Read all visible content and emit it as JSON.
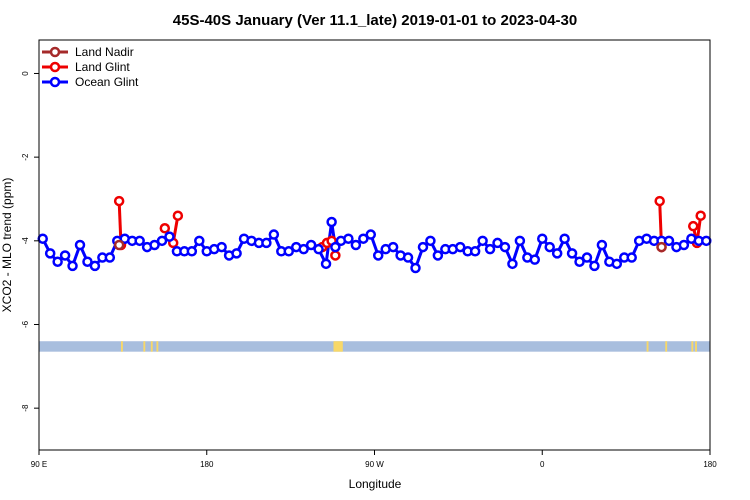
{
  "chart_data": {
    "type": "line",
    "title": "45S-40S January (Ver 11.1_late)   2019-01-01 to 2023-04-30",
    "xlabel": "Longitude",
    "ylabel": "XCO2 - MLO trend (ppm)",
    "xlim": [
      90,
      450
    ],
    "ylim": [
      -9.0,
      0.8
    ],
    "x_ticks": [
      {
        "value": 90,
        "label": "90 E"
      },
      {
        "value": 180,
        "label": "180"
      },
      {
        "value": 270,
        "label": "90 W"
      },
      {
        "value": 360,
        "label": "0"
      },
      {
        "value": 450,
        "label": "180"
      }
    ],
    "y_ticks": [
      {
        "value": 0,
        "label": "0"
      },
      {
        "value": -2,
        "label": "-2"
      },
      {
        "value": -4,
        "label": "-4"
      },
      {
        "value": -6,
        "label": "-6"
      },
      {
        "value": -8,
        "label": "-8"
      }
    ],
    "legend_position": "top-left",
    "series": [
      {
        "name": "Land Nadir",
        "color": "#a52a2a",
        "x": [
          133,
          424
        ],
        "y": [
          -4.1,
          -4.15
        ]
      },
      {
        "name": "Land Glint",
        "color": "#ee0000",
        "segments": [
          {
            "x": [
              133,
              134
            ],
            "y": [
              -3.05,
              -4.1
            ]
          },
          {
            "x": [
              157.5,
              162,
              164.5
            ],
            "y": [
              -3.7,
              -4.05,
              -3.4
            ]
          },
          {
            "x": [
              242,
              244.5,
              247,
              249
            ],
            "y": [
              -4.15,
              -4.05,
              -4.0,
              -4.35
            ]
          },
          {
            "x": [
              423,
              424
            ],
            "y": [
              -3.05,
              -4.15
            ]
          },
          {
            "x": [
              441,
              443,
              445
            ],
            "y": [
              -3.65,
              -4.05,
              -3.4
            ]
          }
        ]
      },
      {
        "name": "Ocean Glint",
        "color": "#0000ff",
        "x": [
          92,
          96,
          100,
          104,
          108,
          112,
          116,
          120,
          124,
          128,
          132,
          136,
          140,
          144,
          148,
          152,
          156,
          160,
          164,
          168,
          172,
          176,
          180,
          184,
          188,
          192,
          196,
          200,
          204,
          208,
          212,
          216,
          220,
          224,
          228,
          232,
          236,
          240,
          244,
          247,
          249,
          252,
          256,
          260,
          264,
          268,
          272,
          276,
          280,
          284,
          288,
          292,
          296,
          300,
          304,
          308,
          312,
          316,
          320,
          324,
          328,
          332,
          336,
          340,
          344,
          348,
          352,
          356,
          360,
          364,
          368,
          372,
          376,
          380,
          384,
          388,
          392,
          396,
          400,
          404,
          408,
          412,
          416,
          420,
          424,
          428,
          432,
          436,
          440,
          444,
          448
        ],
        "y": [
          -3.95,
          -4.3,
          -4.5,
          -4.35,
          -4.6,
          -4.1,
          -4.5,
          -4.6,
          -4.4,
          -4.4,
          -4.0,
          -3.95,
          -4.0,
          -4.0,
          -4.15,
          -4.1,
          -4.0,
          -3.9,
          -4.25,
          -4.25,
          -4.25,
          -4.0,
          -4.25,
          -4.2,
          -4.15,
          -4.35,
          -4.3,
          -3.95,
          -4.0,
          -4.05,
          -4.05,
          -3.85,
          -4.25,
          -4.25,
          -4.15,
          -4.2,
          -4.1,
          -4.2,
          -4.55,
          -3.55,
          -4.15,
          -4.0,
          -3.95,
          -4.1,
          -3.95,
          -3.85,
          -4.35,
          -4.2,
          -4.15,
          -4.35,
          -4.4,
          -4.65,
          -4.15,
          -4.0,
          -4.35,
          -4.2,
          -4.2,
          -4.15,
          -4.25,
          -4.25,
          -4.0,
          -4.2,
          -4.05,
          -4.15,
          -4.55,
          -4.0,
          -4.4,
          -4.45,
          -3.95,
          -4.15,
          -4.3,
          -3.95,
          -4.3,
          -4.5,
          -4.4,
          -4.6,
          -4.1,
          -4.5,
          -4.55,
          -4.4,
          -4.4,
          -4.0,
          -3.95,
          -4.0,
          -4.0,
          -4.0,
          -4.15,
          -4.1,
          -3.95,
          -4.0,
          -4.0
        ]
      }
    ],
    "land_mask": {
      "y_range": [
        -6.65,
        -6.4
      ],
      "ocean_color": "#a8bede",
      "land_color": "#f8d868",
      "land_x": [
        [
          134,
          135
        ],
        [
          146,
          147
        ],
        [
          150,
          151
        ],
        [
          153,
          154
        ],
        [
          248,
          253
        ],
        [
          416,
          417
        ],
        [
          426,
          427
        ],
        [
          440,
          441
        ],
        [
          442,
          443
        ]
      ]
    }
  }
}
